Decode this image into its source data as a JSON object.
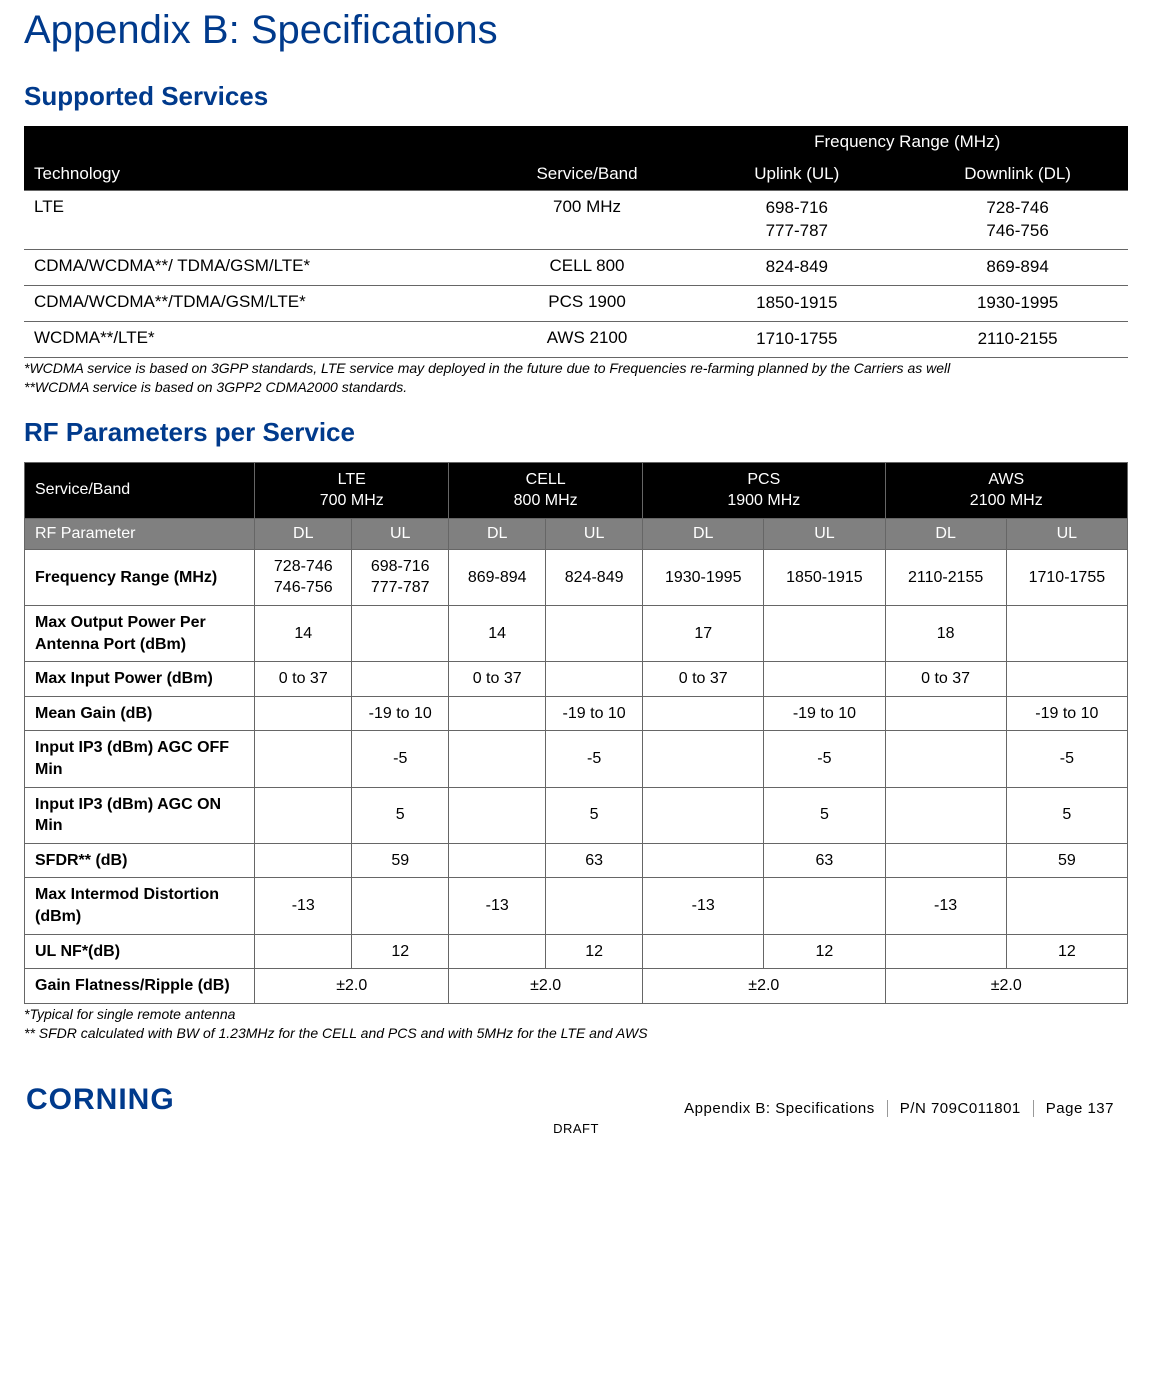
{
  "title": "Appendix B: Specifications",
  "section1": {
    "heading": "Supported Services",
    "headers": {
      "tech": "Technology",
      "band": "Service/Band",
      "freq_super": "Frequency Range (MHz)",
      "ul": "Uplink (UL)",
      "dl": "Downlink (DL)"
    },
    "rows": [
      {
        "tech": "LTE",
        "band": "700 MHz",
        "ul": "698-716\n777-787",
        "dl": "728-746\n746-756"
      },
      {
        "tech": "CDMA/WCDMA**/ TDMA/GSM/LTE*",
        "band": "CELL 800",
        "ul": "824-849",
        "dl": "869-894"
      },
      {
        "tech": "CDMA/WCDMA**/TDMA/GSM/LTE*",
        "band": "PCS 1900",
        "ul": "1850-1915",
        "dl": "1930-1995"
      },
      {
        "tech": "WCDMA**/LTE*",
        "band": "AWS 2100",
        "ul": "1710-1755",
        "dl": "2110-2155"
      }
    ],
    "note1": "*WCDMA service is based on 3GPP standards, LTE service may deployed in the future due to Frequencies re-farming planned by the Carriers as well",
    "note2": "**WCDMA service is based on 3GPP2 CDMA2000 standards."
  },
  "section2": {
    "heading": "RF Parameters per Service",
    "svc_label": "Service/Band",
    "rf_label": "RF Parameter",
    "dl": "DL",
    "ul": "UL",
    "bands": [
      {
        "l1": "LTE",
        "l2": "700 MHz"
      },
      {
        "l1": "CELL",
        "l2": "800 MHz"
      },
      {
        "l1": "PCS",
        "l2": "1900 MHz"
      },
      {
        "l1": "AWS",
        "l2": "2100 MHz"
      }
    ],
    "rows": [
      {
        "param": "Frequency Range (MHz)",
        "cells": [
          "728-746\n746-756",
          "698-716\n777-787",
          "869-894",
          "824-849",
          "1930-1995",
          "1850-1915",
          "2110-2155",
          "1710-1755"
        ]
      },
      {
        "param": "Max Output Power Per Antenna Port (dBm)",
        "cells": [
          "14",
          "",
          "14",
          "",
          "17",
          "",
          "18",
          ""
        ]
      },
      {
        "param": "Max Input Power (dBm)",
        "cells": [
          "0 to 37",
          "",
          "0 to 37",
          "",
          "0 to 37",
          "",
          "0 to 37",
          ""
        ]
      },
      {
        "param": "Mean Gain (dB)",
        "cells": [
          "",
          "-19 to 10",
          "",
          "-19 to 10",
          "",
          "-19 to 10",
          "",
          "-19 to 10"
        ]
      },
      {
        "param": "Input IP3 (dBm) AGC OFF Min",
        "cells": [
          "",
          "-5",
          "",
          "-5",
          "",
          "-5",
          "",
          "-5"
        ]
      },
      {
        "param": "Input IP3 (dBm) AGC ON Min",
        "cells": [
          "",
          "5",
          "",
          "5",
          "",
          "5",
          "",
          "5"
        ]
      },
      {
        "param": "SFDR** (dB)",
        "cells": [
          "",
          "59",
          "",
          "63",
          "",
          "63",
          "",
          "59"
        ]
      },
      {
        "param": "Max Intermod Distortion (dBm)",
        "cells": [
          "-13",
          "",
          "-13",
          "",
          "-13",
          "",
          "-13",
          ""
        ]
      },
      {
        "param": "UL NF*(dB)",
        "cells": [
          "",
          "12",
          "",
          "12",
          "",
          "12",
          "",
          "12"
        ]
      }
    ],
    "gain_row": {
      "param": "Gain Flatness/Ripple (dB)",
      "vals": [
        "±2.0",
        "±2.0",
        "±2.0",
        "±2.0"
      ]
    },
    "note1": "*Typical for single remote antenna",
    "note2": "** SFDR calculated with BW of 1.23MHz for the CELL and PCS and with 5MHz for the LTE and AWS"
  },
  "footer": {
    "logo": "CORNING",
    "crumb": "Appendix B: Specifications",
    "pn": "P/N 709C011801",
    "page": "Page 137",
    "draft": "DRAFT"
  }
}
